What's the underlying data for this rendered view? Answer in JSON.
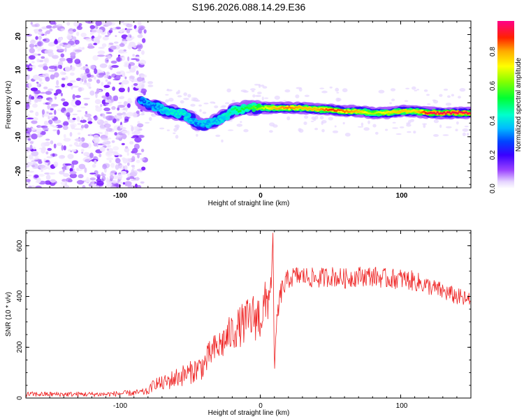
{
  "figure": {
    "title": "S196.2026.088.14.29.E36"
  },
  "chart_data": [
    {
      "type": "heatmap",
      "title": "S196.2026.088.14.29.E36",
      "xlabel": "Height of straight line (km)",
      "ylabel": "Frequency (Hz)",
      "xlim": [
        -167,
        150
      ],
      "ylim": [
        -25,
        24
      ],
      "xticks": [
        -100,
        0,
        100
      ],
      "xtick_labels": [
        "-100",
        "0",
        "100"
      ],
      "yticks": [
        20,
        10,
        0,
        -10,
        -20
      ],
      "ytick_labels": [
        "20",
        "10",
        "0",
        "-10",
        "-20"
      ],
      "noise_region_x": [
        -167,
        -85
      ],
      "ridge": {
        "x": [
          -85,
          -80,
          -75,
          -70,
          -65,
          -60,
          -55,
          -50,
          -45,
          -40,
          -35,
          -30,
          -25,
          -20,
          -15,
          -10,
          -5,
          0,
          10,
          20,
          30,
          40,
          50,
          60,
          70,
          80,
          90,
          100,
          110,
          120,
          130,
          140,
          150
        ],
        "y": [
          0.5,
          -0.5,
          -1,
          -2,
          -2.5,
          -3,
          -3.5,
          -4.5,
          -6,
          -6.5,
          -6,
          -5,
          -4,
          -2.5,
          -2,
          -1.5,
          -1.5,
          -1.5,
          -1.5,
          -1.5,
          -1.5,
          -2,
          -2,
          -2.5,
          -2.5,
          -3,
          -3,
          -2.5,
          -2.5,
          -3,
          -3,
          -3,
          -3
        ],
        "amplitude": [
          0.3,
          0.35,
          0.35,
          0.4,
          0.45,
          0.45,
          0.45,
          0.4,
          0.35,
          0.4,
          0.4,
          0.4,
          0.45,
          0.5,
          0.55,
          0.55,
          0.6,
          0.65,
          0.8,
          0.85,
          0.8,
          0.8,
          0.9,
          0.85,
          0.8,
          0.65,
          0.75,
          0.8,
          0.75,
          0.95,
          0.95,
          0.95,
          0.95
        ]
      }
    },
    {
      "type": "colorbar",
      "label": "Normalized spectral amplitude",
      "range": [
        0,
        0.97
      ],
      "ticks": [
        0.0,
        0.2,
        0.4,
        0.6,
        0.8
      ],
      "tick_labels": [
        "0.0",
        "0.2",
        "0.4",
        "0.6",
        "0.8"
      ]
    },
    {
      "type": "line",
      "xlabel": "Height of straight line (km)",
      "ylabel": "SNR (10 * v/v)",
      "xlim": [
        -167,
        150
      ],
      "ylim": [
        0,
        660
      ],
      "xticks": [
        -100,
        0,
        100
      ],
      "xtick_labels": [
        "-100",
        "0",
        "100"
      ],
      "yticks": [
        0,
        200,
        400,
        600
      ],
      "ytick_labels": [
        "0",
        "200",
        "400",
        "600"
      ],
      "series": [
        {
          "name": "SNR",
          "color": "#ee2222",
          "x": [
            -167,
            -150,
            -130,
            -110,
            -90,
            -80,
            -75,
            -70,
            -60,
            -50,
            -40,
            -35,
            -30,
            -25,
            -20,
            -15,
            -10,
            -5,
            0,
            5,
            8,
            9,
            10,
            12,
            15,
            20,
            25,
            30,
            40,
            50,
            60,
            70,
            80,
            90,
            100,
            110,
            120,
            130,
            140,
            150
          ],
          "values": [
            15,
            15,
            15,
            15,
            20,
            25,
            60,
            55,
            80,
            100,
            130,
            180,
            200,
            230,
            260,
            280,
            300,
            320,
            320,
            380,
            470,
            650,
            100,
            320,
            420,
            470,
            480,
            480,
            470,
            480,
            470,
            480,
            480,
            470,
            470,
            460,
            440,
            420,
            400,
            380
          ],
          "noise_amplitude": [
            10,
            10,
            10,
            10,
            12,
            15,
            25,
            30,
            40,
            45,
            55,
            60,
            65,
            70,
            75,
            80,
            90,
            95,
            100,
            100,
            40,
            0,
            0,
            60,
            50,
            40,
            40,
            40,
            40,
            40,
            40,
            40,
            40,
            40,
            40,
            40,
            35,
            35,
            35,
            35
          ]
        }
      ]
    }
  ]
}
